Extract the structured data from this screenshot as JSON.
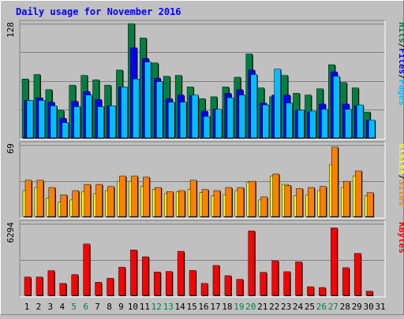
{
  "chart_data": [
    {
      "type": "bar",
      "title": "Daily usage for November 2016",
      "max_label": "128",
      "legend": [
        "Pages",
        "Files",
        "Hits"
      ],
      "legend_separator": "/",
      "categories": [
        1,
        2,
        3,
        4,
        5,
        6,
        7,
        8,
        9,
        10,
        11,
        12,
        13,
        14,
        15,
        16,
        17,
        18,
        19,
        20,
        21,
        22,
        23,
        24,
        25,
        26,
        27,
        28,
        29,
        30,
        31
      ],
      "weekend_days": [
        5,
        6,
        12,
        13,
        19,
        20,
        26,
        27
      ],
      "ylim": [
        0,
        128
      ],
      "series": [
        {
          "name": "Hits",
          "color": "#008040",
          "values": [
            66,
            71,
            54,
            31,
            59,
            70,
            65,
            59,
            76,
            128,
            112,
            84,
            69,
            70,
            57,
            44,
            46,
            57,
            68,
            94,
            56,
            46,
            70,
            50,
            48,
            55,
            82,
            62,
            56,
            29,
            0
          ]
        },
        {
          "name": "Files",
          "color": "#0000ff",
          "values": [
            42,
            45,
            40,
            22,
            41,
            52,
            43,
            36,
            57,
            101,
            89,
            67,
            44,
            48,
            47,
            30,
            32,
            50,
            54,
            76,
            39,
            48,
            48,
            31,
            29,
            38,
            74,
            38,
            36,
            20,
            0
          ]
        },
        {
          "name": "Pages",
          "color": "#00bfff",
          "values": [
            42,
            42,
            36,
            17,
            35,
            48,
            35,
            36,
            57,
            66,
            85,
            63,
            40,
            40,
            48,
            24,
            32,
            45,
            48,
            71,
            37,
            77,
            39,
            31,
            30,
            32,
            69,
            32,
            37,
            20,
            0
          ]
        }
      ]
    },
    {
      "type": "bar",
      "max_label": "69",
      "legend": [
        "Sites",
        "Visits"
      ],
      "legend_separator": "/",
      "categories": [
        1,
        2,
        3,
        4,
        5,
        6,
        7,
        8,
        9,
        10,
        11,
        12,
        13,
        14,
        15,
        16,
        17,
        18,
        19,
        20,
        21,
        22,
        23,
        24,
        25,
        26,
        27,
        28,
        29,
        30,
        31
      ],
      "ylim": [
        0,
        69
      ],
      "series": [
        {
          "name": "Visits",
          "color": "#ffff00",
          "values": [
            25,
            28,
            18,
            14,
            16,
            24,
            22,
            25,
            34,
            34,
            29,
            26,
            22,
            24,
            26,
            23,
            20,
            21,
            25,
            33,
            16,
            39,
            31,
            20,
            21,
            25,
            50,
            28,
            39,
            20,
            0
          ]
        },
        {
          "name": "Sites",
          "color": "#ff8000",
          "values": [
            35,
            35,
            28,
            21,
            25,
            31,
            31,
            29,
            39,
            39,
            38,
            28,
            24,
            25,
            35,
            26,
            25,
            28,
            28,
            34,
            19,
            41,
            30,
            27,
            28,
            29,
            67,
            34,
            44,
            23,
            0
          ]
        }
      ]
    },
    {
      "type": "bar",
      "max_label": "6294",
      "legend": [
        "KBytes"
      ],
      "categories": [
        1,
        2,
        3,
        4,
        5,
        6,
        7,
        8,
        9,
        10,
        11,
        12,
        13,
        14,
        15,
        16,
        17,
        18,
        19,
        20,
        21,
        22,
        23,
        24,
        25,
        26,
        27,
        28,
        29,
        30,
        31
      ],
      "ylim": [
        0,
        6294
      ],
      "series": [
        {
          "name": "KBytes",
          "color": "#ff0000",
          "values": [
            1610,
            1610,
            2170,
            1050,
            1830,
            4510,
            1150,
            1510,
            2480,
            3990,
            3390,
            2050,
            2100,
            3870,
            2190,
            1050,
            2630,
            1730,
            1410,
            5660,
            2020,
            3040,
            2080,
            2940,
            760,
            690,
            5920,
            2430,
            3690,
            370,
            0
          ]
        }
      ]
    }
  ]
}
